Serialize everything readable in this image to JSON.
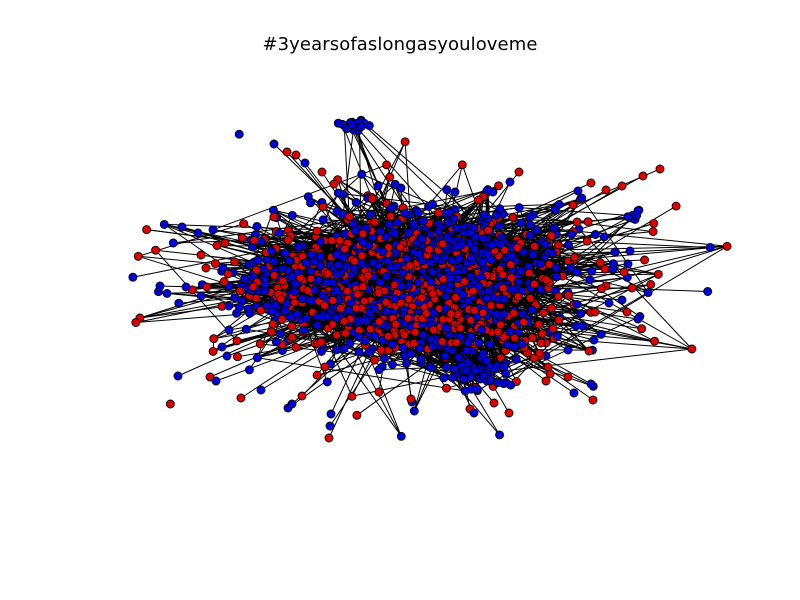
{
  "figure": {
    "title": "#3yearsofaslongasyouloveme"
  },
  "graph": {
    "node_colors": {
      "blue": "#0000dd",
      "red": "#e00000",
      "outline": "#000000",
      "edge": "#000000"
    }
  }
}
